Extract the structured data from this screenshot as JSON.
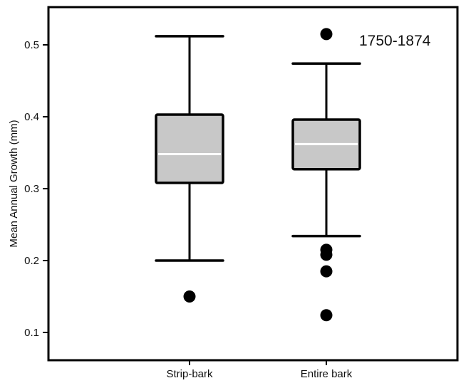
{
  "chart_data": {
    "type": "box",
    "title": "",
    "annotation": "1750-1874",
    "xlabel": "",
    "ylabel": "Mean Annual Growth (mm)",
    "ylim": [
      0.07,
      0.56
    ],
    "yticks": [
      "0.1",
      "0.2",
      "0.3",
      "0.4",
      "0.5"
    ],
    "grid": false,
    "categories": [
      "Strip-bark",
      "Entire bark"
    ],
    "boxes": [
      {
        "name": "Strip-bark",
        "whisker_low": 0.2,
        "q1": 0.308,
        "median": 0.348,
        "q3": 0.403,
        "whisker_high": 0.512,
        "outliers": [
          0.15
        ]
      },
      {
        "name": "Entire bark",
        "whisker_low": 0.234,
        "q1": 0.327,
        "median": 0.362,
        "q3": 0.396,
        "whisker_high": 0.474,
        "outliers": [
          0.515,
          0.215,
          0.208,
          0.185,
          0.124
        ]
      }
    ],
    "colors": {
      "box_fill": "#c8c8c8",
      "median_line": "#ffffff",
      "stroke": "#000000",
      "outlier": "#000000"
    }
  }
}
